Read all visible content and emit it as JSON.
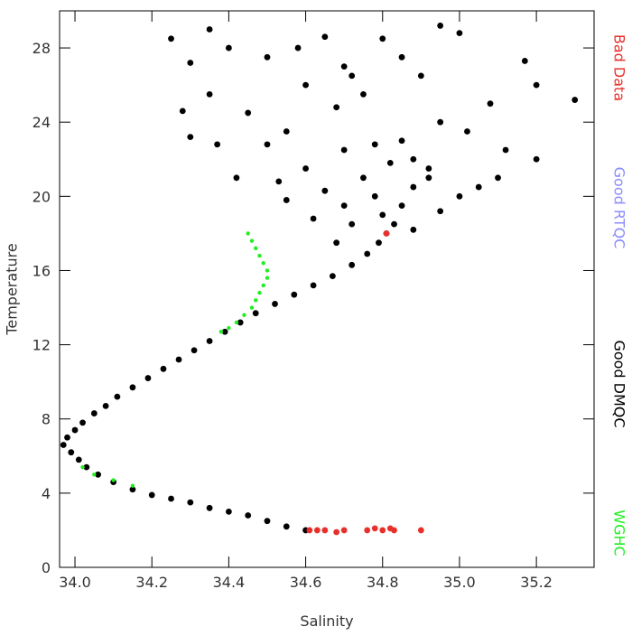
{
  "chart_data": {
    "type": "scatter",
    "xlabel": "Salinity",
    "ylabel": "Temperature",
    "xlim": [
      33.96,
      35.35
    ],
    "ylim": [
      0,
      30
    ],
    "xticks": [
      {
        "value": 34,
        "label": "34.0"
      },
      34.2,
      34.4,
      34.6,
      34.8,
      {
        "value": 35,
        "label": "35.0"
      },
      35.2
    ],
    "yticks": [
      0,
      4,
      8,
      12,
      16,
      20,
      24,
      28
    ],
    "series": [
      {
        "name": "Bad Data",
        "color": "#e8302a",
        "x": [
          34.61,
          34.63,
          34.65,
          34.68,
          34.7,
          34.76,
          34.78,
          34.8,
          34.82,
          34.83,
          34.9,
          34.81
        ],
        "y": [
          2.0,
          2.0,
          2.0,
          1.9,
          2.0,
          2.0,
          2.1,
          2.0,
          2.1,
          2.0,
          2.0,
          18.0
        ]
      },
      {
        "name": "Good RTQC",
        "color": "#8c8cff",
        "x": [],
        "y": []
      },
      {
        "name": "Good DMQC",
        "color": "#000000",
        "x": [
          34.6,
          34.55,
          34.5,
          34.45,
          34.4,
          34.35,
          34.3,
          34.25,
          34.2,
          34.15,
          34.1,
          34.06,
          34.03,
          34.01,
          33.99,
          33.97,
          33.98,
          34.0,
          34.02,
          34.05,
          34.08,
          34.11,
          34.15,
          34.19,
          34.23,
          34.27,
          34.31,
          34.35,
          34.39,
          34.43,
          34.47,
          34.52,
          34.57,
          34.62,
          34.67,
          34.72,
          34.76,
          34.79,
          34.81,
          34.83,
          34.8,
          34.85,
          34.78,
          34.88,
          34.75,
          34.92,
          35.0,
          35.1,
          35.2,
          34.95,
          35.05,
          34.7,
          34.65,
          34.6,
          34.7,
          34.85,
          34.95,
          34.55,
          34.5,
          34.45,
          34.35,
          34.3,
          34.4,
          34.5,
          34.6,
          34.7,
          34.8,
          34.9,
          35.0,
          34.95,
          35.2,
          35.3,
          35.17,
          34.25,
          34.35,
          34.28,
          34.37,
          34.3,
          34.42,
          34.53,
          34.68,
          34.75,
          34.88,
          35.02,
          35.08,
          34.58,
          34.65,
          34.72,
          34.85,
          34.92,
          35.12,
          34.62,
          34.55,
          34.82,
          34.78,
          34.88,
          34.72,
          34.68
        ],
        "y": [
          2.0,
          2.2,
          2.5,
          2.8,
          3.0,
          3.2,
          3.5,
          3.7,
          3.9,
          4.2,
          4.6,
          5.0,
          5.4,
          5.8,
          6.2,
          6.6,
          7.0,
          7.4,
          7.8,
          8.3,
          8.7,
          9.2,
          9.7,
          10.2,
          10.7,
          11.2,
          11.7,
          12.2,
          12.7,
          13.2,
          13.7,
          14.2,
          14.7,
          15.2,
          15.7,
          16.3,
          16.9,
          17.5,
          18.0,
          18.5,
          19.0,
          19.5,
          20.0,
          20.5,
          21.0,
          21.5,
          20.0,
          21.0,
          22.0,
          19.2,
          20.5,
          19.5,
          20.3,
          21.5,
          22.5,
          23.0,
          24.0,
          23.5,
          22.8,
          24.5,
          25.5,
          27.2,
          28.0,
          27.5,
          26.0,
          27.0,
          28.5,
          26.5,
          28.8,
          29.2,
          26.0,
          25.2,
          27.3,
          28.5,
          29.0,
          24.6,
          22.8,
          23.2,
          21.0,
          20.8,
          24.8,
          25.5,
          22.0,
          23.5,
          25.0,
          28.0,
          28.6,
          26.5,
          27.5,
          21.0,
          22.5,
          18.8,
          19.8,
          21.8,
          22.8,
          18.2,
          18.5,
          17.5
        ]
      },
      {
        "name": "WGHC",
        "color": "#22ee22",
        "x": [
          34.45,
          34.46,
          34.47,
          34.48,
          34.49,
          34.5,
          34.5,
          34.49,
          34.48,
          34.47,
          34.46,
          34.44,
          34.42,
          34.4,
          34.38,
          34.15,
          34.1,
          34.05,
          34.02
        ],
        "y": [
          18.0,
          17.6,
          17.2,
          16.8,
          16.4,
          16.0,
          15.6,
          15.2,
          14.8,
          14.4,
          14.0,
          13.6,
          13.2,
          12.9,
          12.7,
          4.4,
          4.7,
          5.0,
          5.4
        ]
      }
    ]
  }
}
